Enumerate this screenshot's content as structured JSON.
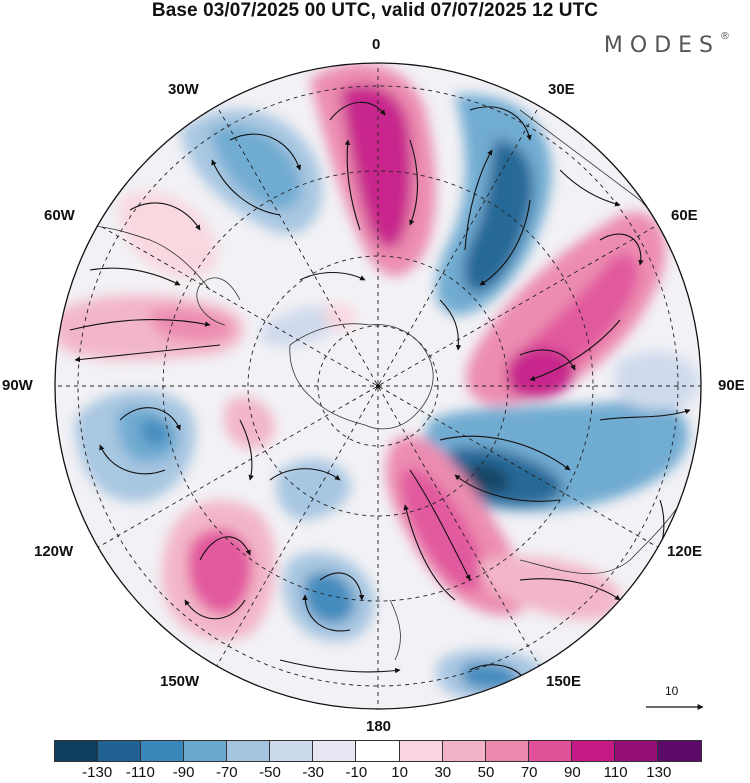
{
  "title": "Base 03/07/2025 00 UTC, valid 07/07/2025 12 UTC",
  "brand": "MODES",
  "brand_mark": "®",
  "longitude_labels": {
    "lon_0": "0",
    "lon_30e": "30E",
    "lon_60e": "60E",
    "lon_90e": "90E",
    "lon_120e": "120E",
    "lon_150e": "150E",
    "lon_180": "180",
    "lon_150w": "150W",
    "lon_120w": "120W",
    "lon_90w": "90W",
    "lon_60w": "60W",
    "lon_30w": "30W"
  },
  "vector_reference": "10",
  "colorbar": {
    "colors": [
      "#0e3d5f",
      "#1f6293",
      "#3a87bb",
      "#6aa8d0",
      "#a4c4e0",
      "#cdd9ec",
      "#e8e6f2",
      "#ffffff",
      "#f9d6df",
      "#f3b3c6",
      "#ec87ad",
      "#e1519a",
      "#c61b87",
      "#950f78",
      "#5c0a6a"
    ],
    "tick_labels": [
      "-130",
      "-110",
      "-90",
      "-70",
      "-50",
      "-30",
      "-10",
      "10",
      "30",
      "50",
      "70",
      "90",
      "110",
      "130"
    ]
  },
  "anomaly_fields": [
    {
      "name": "neg-anomaly-north-30w",
      "lon": -30,
      "lat": 0.62,
      "level": -70
    },
    {
      "name": "pos-anomaly-north-0",
      "lon": 0,
      "lat": 0.62,
      "level": 110
    },
    {
      "name": "neg-anomaly-30e",
      "lon": 35,
      "lat": 0.62,
      "level": -110
    },
    {
      "name": "pos-anomaly-60e",
      "lon": 68,
      "lat": 0.65,
      "level": 90
    },
    {
      "name": "pos-anomaly-75e",
      "lon": 78,
      "lat": 0.45,
      "level": 110
    },
    {
      "name": "neg-anomaly-110e",
      "lon": 112,
      "lat": 0.45,
      "level": -130
    },
    {
      "name": "pos-anomaly-160e",
      "lon": 165,
      "lat": 0.35,
      "level": 90
    },
    {
      "name": "pos-anomaly-130e",
      "lon": 130,
      "lat": 0.75,
      "level": 70
    },
    {
      "name": "neg-anomaly-160e-outer",
      "lon": 155,
      "lat": 0.82,
      "level": -50
    },
    {
      "name": "neg-anomaly-180",
      "lon": -170,
      "lat": 0.62,
      "level": -90
    },
    {
      "name": "pos-anomaly-135w",
      "lon": -138,
      "lat": 0.62,
      "level": 90
    },
    {
      "name": "neg-anomaly-100w",
      "lon": -102,
      "lat": 0.7,
      "level": -90
    },
    {
      "name": "pos-anomaly-75w",
      "lon": -76,
      "lat": 0.72,
      "level": 50
    },
    {
      "name": "neg-anomaly-150w-inner",
      "lon": -165,
      "lat": 0.35,
      "level": -50
    }
  ]
}
